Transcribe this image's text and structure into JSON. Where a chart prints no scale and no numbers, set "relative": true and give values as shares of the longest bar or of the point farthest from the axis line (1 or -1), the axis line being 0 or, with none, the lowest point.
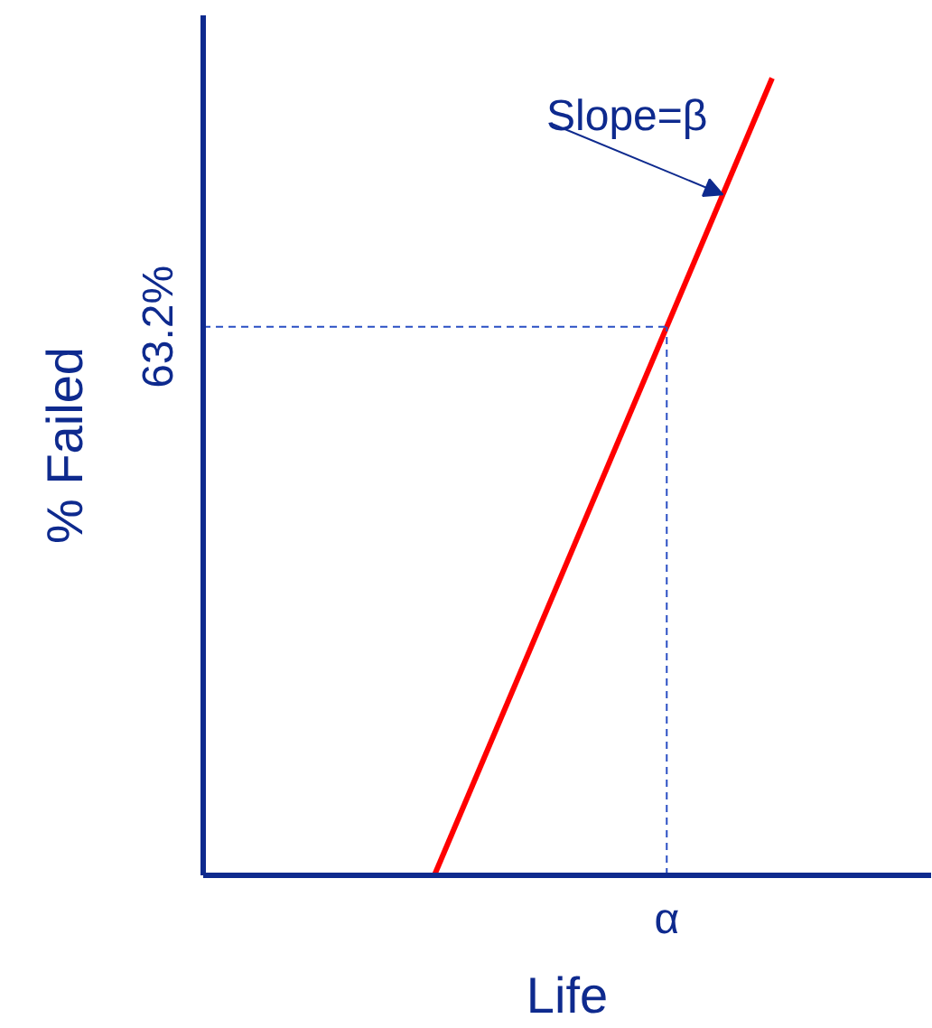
{
  "chart_data": {
    "type": "line",
    "relative": true,
    "xlabel": "Life",
    "ylabel": "% Failed",
    "categories": [
      null,
      null
    ],
    "series": [
      {
        "color": "#ff0000",
        "values": [
          0,
          1
        ]
      }
    ],
    "annotations": [
      "Slope=β",
      "63.2%",
      "α"
    ],
    "line_style": "solid"
  }
}
